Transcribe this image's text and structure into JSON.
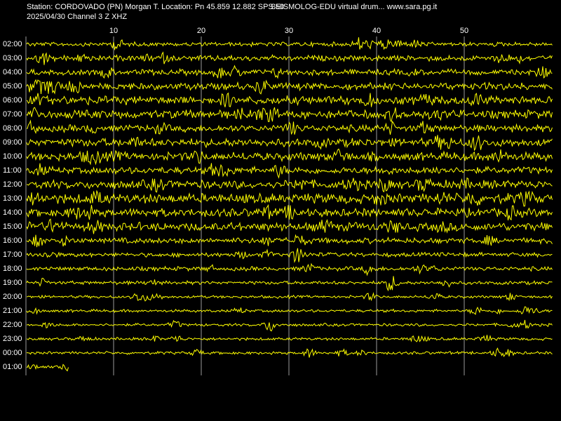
{
  "header": {
    "station": "Station: CORDOVADO (PN) Morgan T. Location: Pn 45.859 12.882 SPS:50",
    "app": "SEISMOLOG-EDU virtual drum... www.sara.pg.it",
    "date_channel": "2025/04/30  Channel 3 Z XHZ"
  },
  "minute_ticks": [
    10,
    20,
    30,
    40,
    50
  ],
  "hour_rows": [
    "02:00",
    "03:00",
    "04:00",
    "05:00",
    "06:00",
    "07:00",
    "08:00",
    "09:00",
    "10:00",
    "11:00",
    "12:00",
    "13:00",
    "14:00",
    "15:00",
    "16:00",
    "17:00",
    "18:00",
    "19:00",
    "20:00",
    "21:00",
    "22:00",
    "23:00",
    "00:00",
    "01:00"
  ]
}
